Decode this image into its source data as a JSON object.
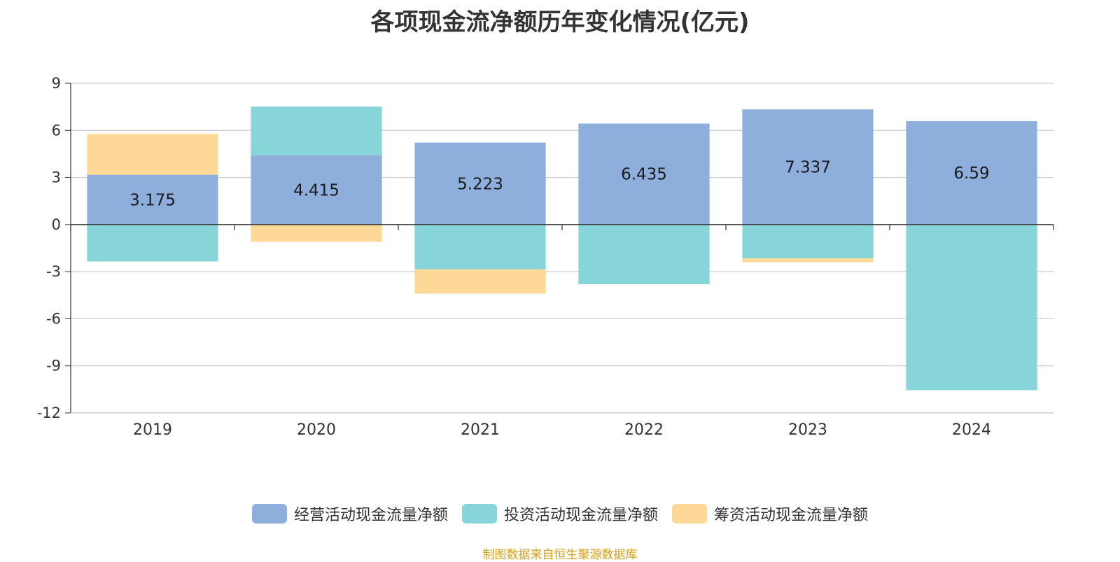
{
  "chart_data": {
    "type": "bar",
    "stacked": true,
    "title": "各项现金流净额历年变化情况(亿元)",
    "xlabel": "",
    "ylabel": "",
    "categories": [
      "2019",
      "2020",
      "2021",
      "2022",
      "2023",
      "2024"
    ],
    "ylim": [
      -12,
      9
    ],
    "yticks": [
      9,
      6,
      3,
      0,
      -3,
      -6,
      -9,
      -12
    ],
    "grid": true,
    "legend_position": "bottom",
    "series": [
      {
        "name": "经营活动现金流量净额",
        "color": "#8eaedb",
        "values": [
          3.175,
          4.415,
          5.223,
          6.435,
          7.337,
          6.59
        ],
        "show_labels": true
      },
      {
        "name": "投资活动现金流量净额",
        "color": "#87d5d8",
        "values": [
          -2.35,
          3.1,
          -2.85,
          -3.8,
          -2.15,
          -10.55
        ],
        "show_labels": false
      },
      {
        "name": "筹资活动现金流量净额",
        "color": "#fed896",
        "values": [
          2.6,
          -1.1,
          -1.55,
          0,
          -0.25,
          0
        ],
        "show_labels": false
      }
    ]
  },
  "source_note": "制图数据来自恒生聚源数据库"
}
